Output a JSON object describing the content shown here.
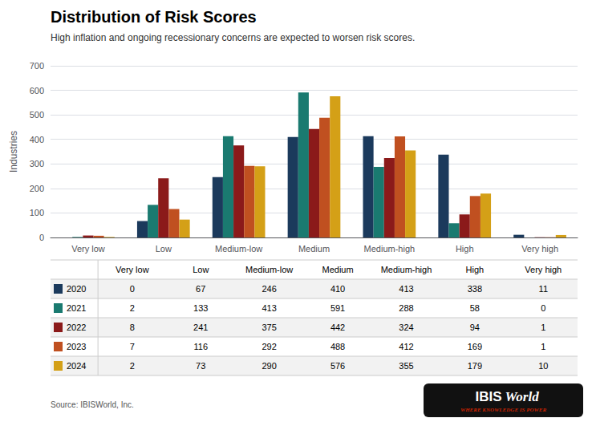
{
  "chart_data": {
    "type": "bar",
    "title": "Distribution of Risk Scores",
    "subtitle": "High inflation and ongoing recessionary concerns are expected to worsen risk scores.",
    "ylabel": "Industries",
    "categories": [
      "Very low",
      "Low",
      "Medium-low",
      "Medium",
      "Medium-high",
      "High",
      "Very high"
    ],
    "series": [
      {
        "name": "2020",
        "color": "#1B3A5C",
        "values": [
          0,
          67,
          246,
          410,
          413,
          338,
          11
        ]
      },
      {
        "name": "2021",
        "color": "#1A7A70",
        "values": [
          2,
          133,
          413,
          591,
          288,
          58,
          0
        ]
      },
      {
        "name": "2022",
        "color": "#8B1A1A",
        "values": [
          8,
          241,
          375,
          442,
          324,
          94,
          1
        ]
      },
      {
        "name": "2023",
        "color": "#C05020",
        "values": [
          7,
          116,
          292,
          488,
          412,
          169,
          1
        ]
      },
      {
        "name": "2024",
        "color": "#D4A017",
        "values": [
          2,
          73,
          290,
          576,
          355,
          179,
          10
        ]
      }
    ],
    "ylim": [
      0,
      700
    ],
    "yticks": [
      0,
      100,
      200,
      300,
      400,
      500,
      600,
      700
    ],
    "grid": true,
    "annotations": [
      "Source: IBISWorld, Inc.",
      "IBIS",
      "World",
      "WHERE KNOWLEDGE IS POWER"
    ]
  }
}
